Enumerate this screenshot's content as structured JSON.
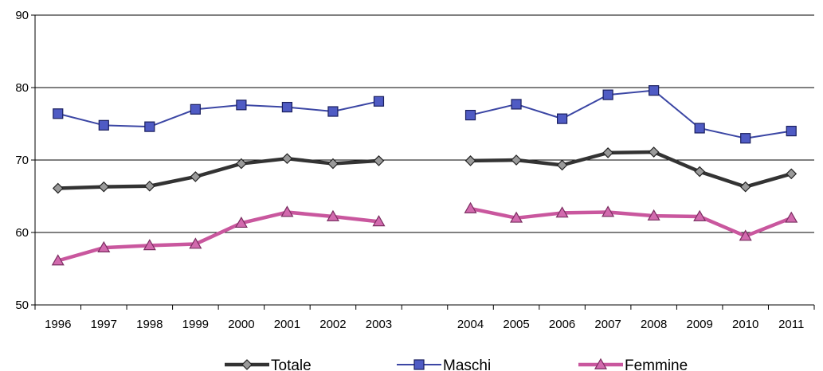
{
  "chart_data": {
    "type": "line",
    "categories": [
      "1996",
      "1997",
      "1998",
      "1999",
      "2000",
      "2001",
      "2002",
      "2003",
      "",
      "2004",
      "2005",
      "2006",
      "2007",
      "2008",
      "2009",
      "2010",
      "2011"
    ],
    "series": [
      {
        "name": "Totale",
        "color": "#333333",
        "marker": "diamond",
        "values": [
          66.1,
          66.3,
          66.4,
          67.7,
          69.5,
          70.2,
          69.5,
          69.9,
          null,
          69.9,
          70.0,
          69.3,
          71.0,
          71.1,
          68.4,
          66.3,
          68.1
        ]
      },
      {
        "name": "Maschi",
        "color": "#3b46a4",
        "marker": "square",
        "values": [
          76.4,
          74.8,
          74.6,
          77.0,
          77.6,
          77.3,
          76.7,
          78.1,
          null,
          76.2,
          77.7,
          75.7,
          79.0,
          79.6,
          74.4,
          73.0,
          74.0
        ]
      },
      {
        "name": "Femmine",
        "color": "#c9579e",
        "marker": "triangle",
        "values": [
          56.1,
          57.9,
          58.2,
          58.4,
          61.3,
          62.8,
          62.2,
          61.5,
          null,
          63.3,
          62.0,
          62.7,
          62.8,
          62.3,
          62.2,
          59.5,
          62.0
        ]
      }
    ],
    "ylim": [
      50,
      90
    ],
    "yticks": [
      "50",
      "60",
      "70",
      "80",
      "90"
    ],
    "grid": true,
    "legend": "bottom"
  }
}
